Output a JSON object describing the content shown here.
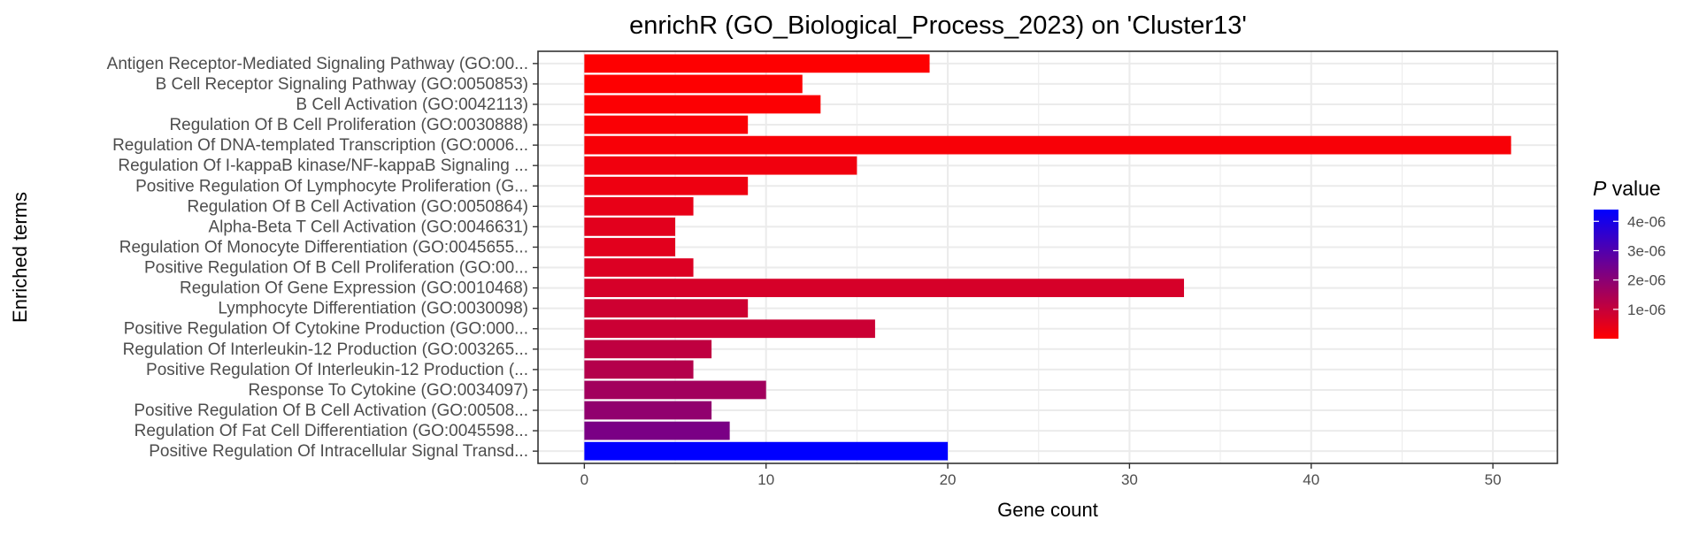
{
  "chart_data": {
    "type": "bar",
    "orientation": "horizontal",
    "title": "enrichR (GO_Biological_Process_2023) on 'Cluster13'",
    "xlabel": "Gene count",
    "ylabel": "Enriched terms",
    "xlim": [
      -2.55,
      53.55
    ],
    "xticks": [
      0,
      10,
      20,
      30,
      40,
      50
    ],
    "grid": true,
    "legend": {
      "title_italic": "P",
      "title_rest": " value",
      "placement": "right",
      "ticks": [
        "4e-06",
        "3e-06",
        "2e-06",
        "1e-06"
      ],
      "tick_values": [
        4e-06,
        3e-06,
        2e-06,
        1e-06
      ],
      "range": [
        0,
        4.4e-06
      ],
      "low_color": "#ff0000",
      "high_color": "#0000ff"
    },
    "categories": [
      "Antigen Receptor-Mediated Signaling Pathway (GO:00...",
      "B Cell Receptor Signaling Pathway (GO:0050853)",
      "B Cell Activation (GO:0042113)",
      "Regulation Of B Cell Proliferation (GO:0030888)",
      "Regulation Of DNA-templated Transcription (GO:0006...",
      "Regulation Of I-kappaB kinase/NF-kappaB Signaling ...",
      "Positive Regulation Of Lymphocyte Proliferation (G...",
      "Regulation Of B Cell Activation (GO:0050864)",
      "Alpha-Beta T Cell Activation (GO:0046631)",
      "Regulation Of Monocyte Differentiation (GO:0045655...",
      "Positive Regulation Of B Cell Proliferation (GO:00...",
      "Regulation Of Gene Expression (GO:0010468)",
      "Lymphocyte Differentiation (GO:0030098)",
      "Positive Regulation Of Cytokine Production (GO:000...",
      "Regulation Of Interleukin-12 Production (GO:003265...",
      "Positive Regulation Of Interleukin-12 Production (...",
      "Response To Cytokine (GO:0034097)",
      "Positive Regulation Of B Cell Activation (GO:00508...",
      "Regulation Of Fat Cell Differentiation (GO:0045598...",
      "Positive Regulation Of Intracellular Signal Transd..."
    ],
    "values": [
      19,
      12,
      13,
      9,
      51,
      15,
      9,
      6,
      5,
      5,
      6,
      33,
      9,
      16,
      7,
      6,
      10,
      7,
      8,
      20
    ],
    "p_values": [
      1e-08,
      2e-08,
      5e-08,
      8e-08,
      1.2e-07,
      2.5e-07,
      3e-07,
      4e-07,
      5e-07,
      5e-07,
      6e-07,
      7e-07,
      8.5e-07,
      9e-07,
      1.1e-06,
      1.3e-06,
      1.6e-06,
      1.9e-06,
      2.3e-06,
      4.4e-06
    ]
  }
}
